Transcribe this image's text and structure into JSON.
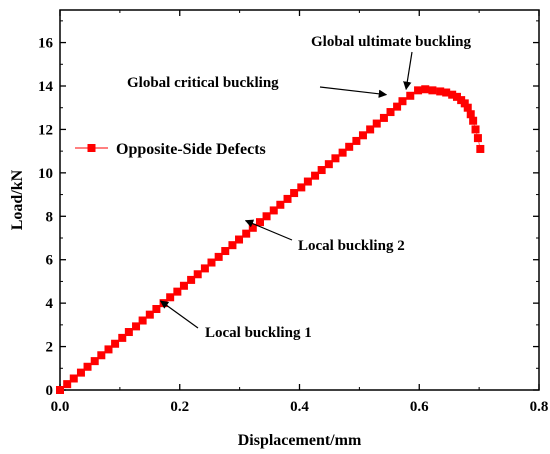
{
  "chart_data": {
    "type": "scatter",
    "xlabel": "Displacement/mm",
    "ylabel": "Load/kN",
    "xlim": [
      0,
      0.8
    ],
    "ylim": [
      0,
      17.5
    ],
    "x_ticks": [
      "0.0",
      "0.2",
      "0.4",
      "0.6",
      "0.8"
    ],
    "y_ticks": [
      "0",
      "2",
      "4",
      "6",
      "8",
      "10",
      "12",
      "14",
      "16"
    ],
    "grid": false,
    "legend_position": "upper-left",
    "series": [
      {
        "name": "Opposite-Side Defects",
        "color": "#ff0000",
        "marker": "square",
        "x": [
          0.0,
          0.012,
          0.023,
          0.035,
          0.046,
          0.058,
          0.069,
          0.081,
          0.092,
          0.104,
          0.115,
          0.127,
          0.138,
          0.15,
          0.161,
          0.173,
          0.184,
          0.196,
          0.207,
          0.219,
          0.23,
          0.242,
          0.253,
          0.265,
          0.276,
          0.288,
          0.299,
          0.311,
          0.322,
          0.334,
          0.345,
          0.357,
          0.368,
          0.38,
          0.391,
          0.403,
          0.414,
          0.426,
          0.437,
          0.449,
          0.46,
          0.472,
          0.483,
          0.495,
          0.506,
          0.518,
          0.529,
          0.541,
          0.552,
          0.563,
          0.572,
          0.585,
          0.598,
          0.61,
          0.622,
          0.635,
          0.645,
          0.655,
          0.663,
          0.67,
          0.676,
          0.681,
          0.686,
          0.69,
          0.694,
          0.698,
          0.702
        ],
        "y": [
          0.0,
          0.27,
          0.53,
          0.8,
          1.07,
          1.33,
          1.6,
          1.87,
          2.13,
          2.4,
          2.67,
          2.93,
          3.2,
          3.47,
          3.73,
          4.0,
          4.27,
          4.53,
          4.8,
          5.07,
          5.33,
          5.6,
          5.87,
          6.13,
          6.4,
          6.67,
          6.93,
          7.2,
          7.47,
          7.73,
          8.0,
          8.27,
          8.53,
          8.8,
          9.07,
          9.33,
          9.6,
          9.87,
          10.13,
          10.4,
          10.67,
          10.93,
          11.2,
          11.47,
          11.73,
          12.0,
          12.27,
          12.53,
          12.8,
          13.05,
          13.3,
          13.55,
          13.8,
          13.85,
          13.8,
          13.75,
          13.7,
          13.6,
          13.5,
          13.35,
          13.2,
          13.0,
          12.7,
          12.4,
          12.0,
          11.6,
          11.1
        ]
      }
    ],
    "annotations": [
      {
        "text": "Global ultimate buckling",
        "x": 0.578,
        "y": 13.85
      },
      {
        "text": "Global critical buckling",
        "x": 0.545,
        "y": 13.6
      },
      {
        "text": "Local buckling 2",
        "x": 0.31,
        "y": 7.8
      },
      {
        "text": "Local buckling 1",
        "x": 0.168,
        "y": 4.1
      }
    ]
  }
}
